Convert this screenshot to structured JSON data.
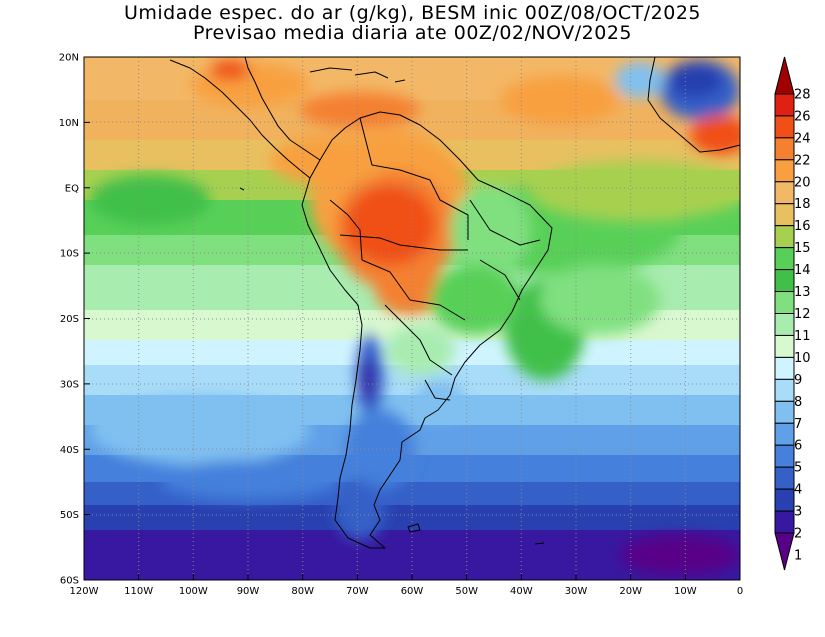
{
  "title": {
    "line1": "Umidade espec. do ar (g/kg), BESM inic 00Z/08/OCT/2025",
    "line2": "Previsao media diaria ate 00Z/02/NOV/2025"
  },
  "axes": {
    "lat_labels": [
      "20N",
      "10N",
      "EQ",
      "10S",
      "20S",
      "30S",
      "40S",
      "50S",
      "60S"
    ],
    "lon_labels": [
      "120W",
      "110W",
      "100W",
      "90W",
      "80W",
      "70W",
      "60W",
      "50W",
      "40W",
      "30W",
      "20W",
      "10W",
      "0"
    ]
  },
  "colorbar": {
    "levels": [
      "28",
      "26",
      "24",
      "22",
      "20",
      "18",
      "16",
      "15",
      "14",
      "13",
      "12",
      "11",
      "10",
      "9",
      "8",
      "7",
      "6",
      "5",
      "4",
      "3",
      "2",
      "1"
    ],
    "colors": [
      "#a00000",
      "#e02010",
      "#f05018",
      "#f48030",
      "#f8a040",
      "#f3b867",
      "#e8c060",
      "#a8d050",
      "#58d058",
      "#40c048",
      "#80e080",
      "#a8ecb0",
      "#d8f8d0",
      "#d0f4ff",
      "#a8dcf8",
      "#80c0f0",
      "#60a0e8",
      "#4480dc",
      "#3460c8",
      "#2840b0",
      "#3818a0",
      "#580088"
    ]
  }
}
